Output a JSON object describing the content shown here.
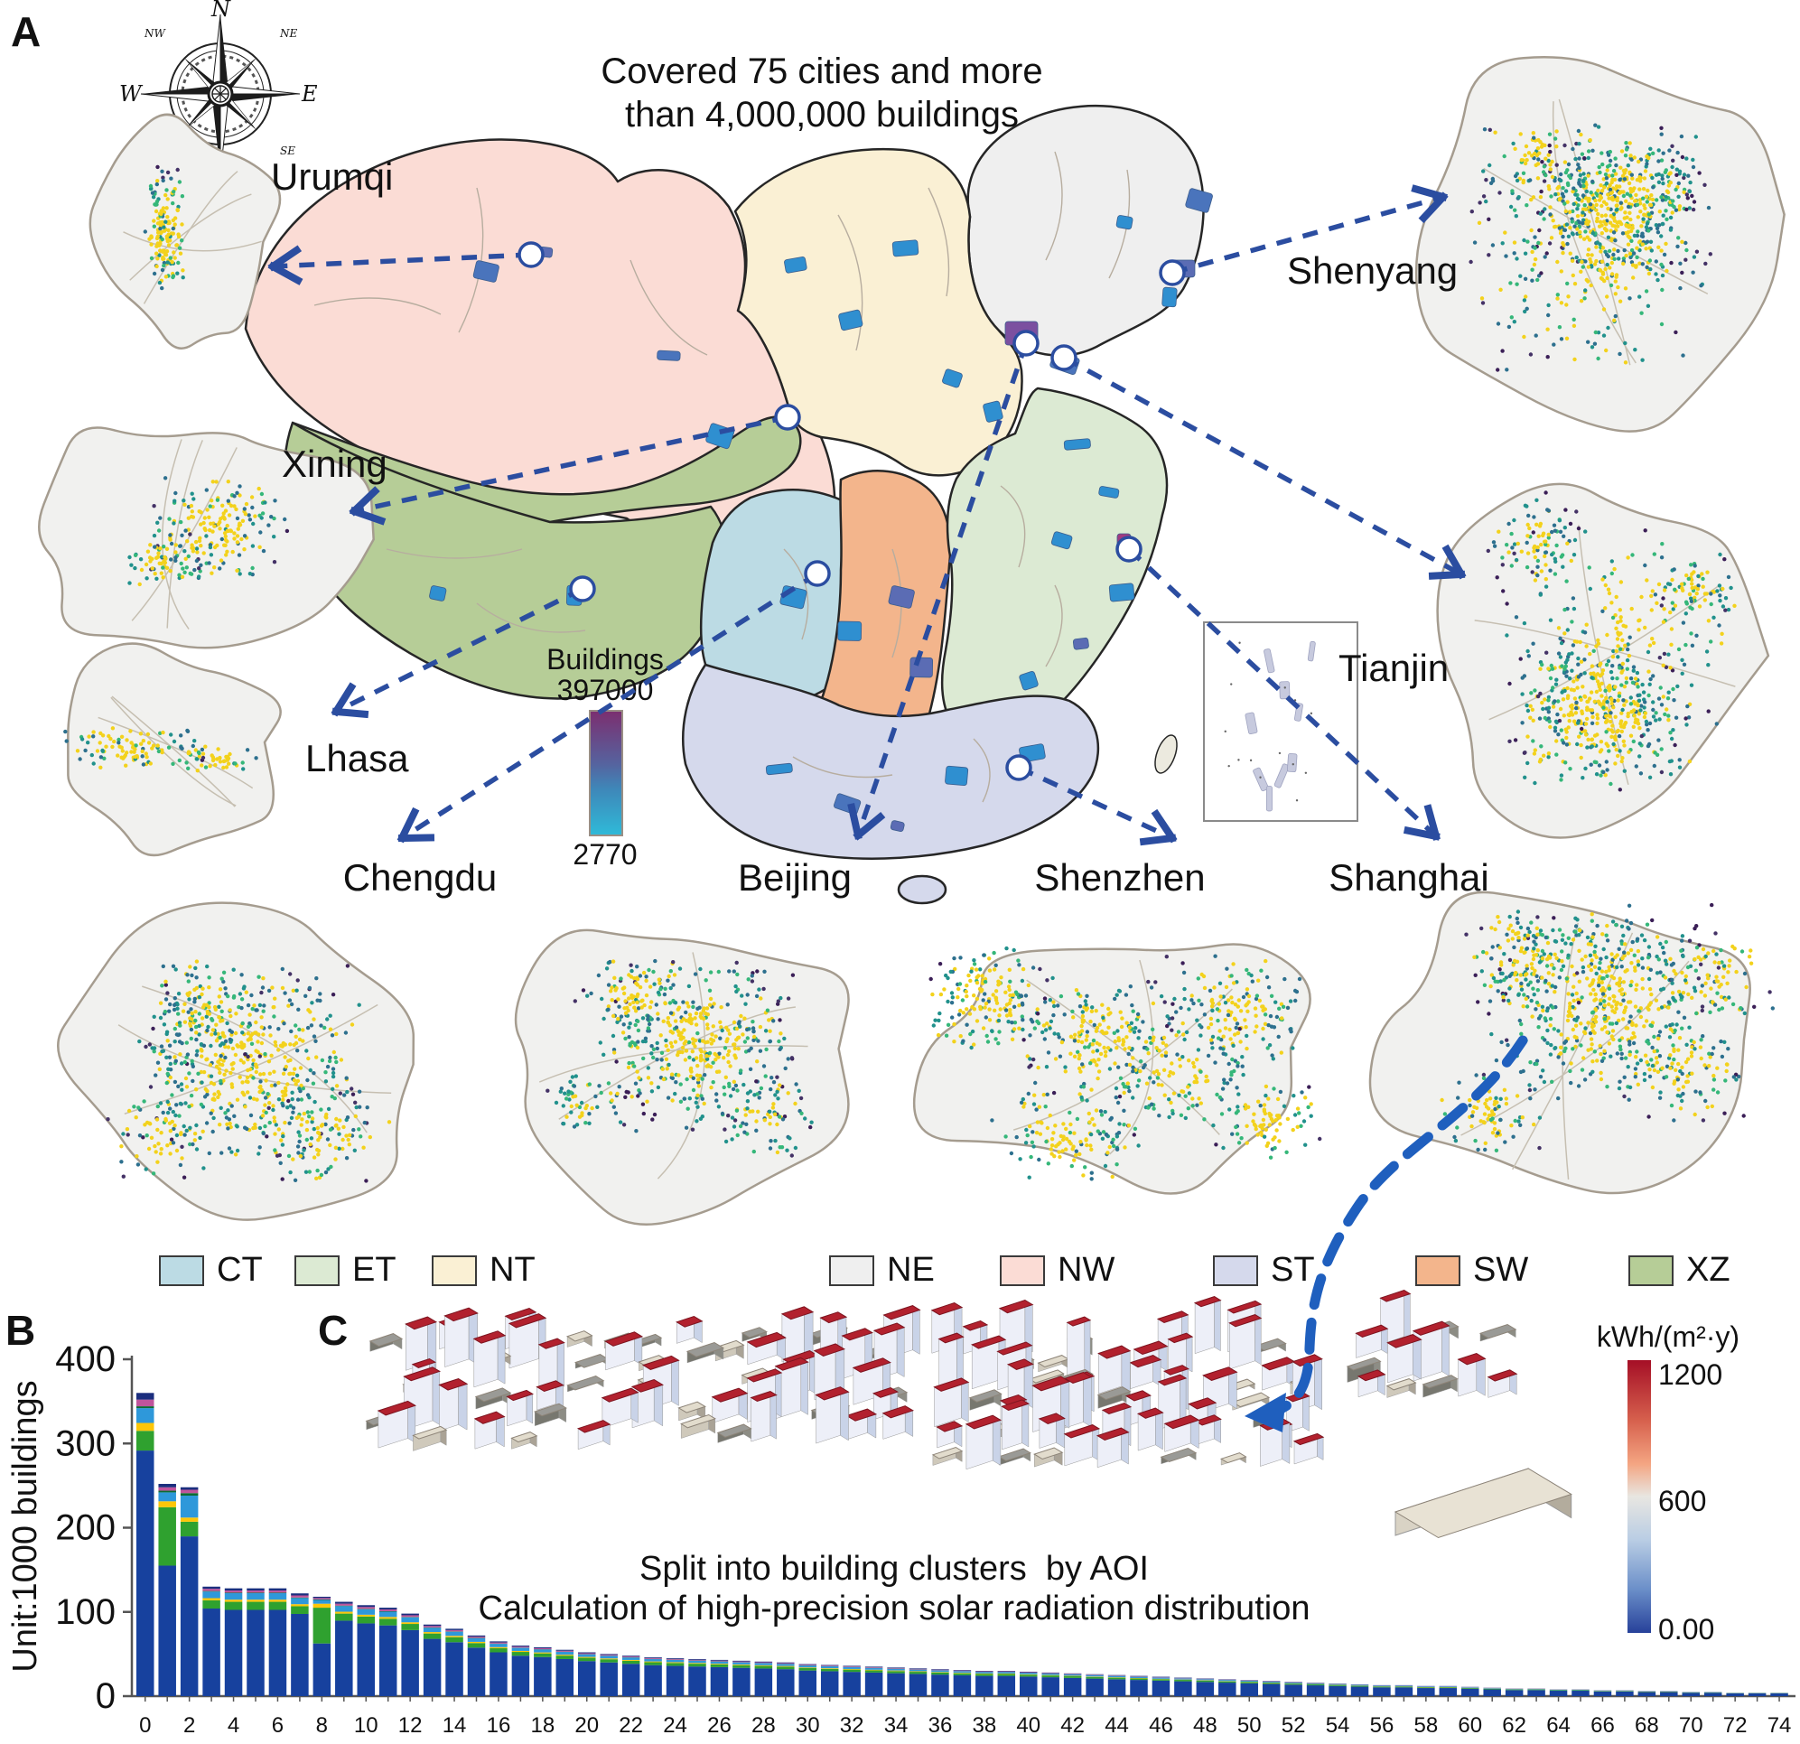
{
  "figure": {
    "panel_a_label": "A",
    "panel_b_label": "B",
    "panel_c_label": "C",
    "title_line1": "Covered 75 cities and more",
    "title_line2": "than 4,000,000 buildings"
  },
  "compass": {
    "n": "N",
    "s": "S",
    "e": "E",
    "w": "W",
    "nw": "NW",
    "ne": "NE",
    "sw": "SW",
    "se": "SE"
  },
  "map": {
    "cities": [
      {
        "name": "Urumqi"
      },
      {
        "name": "Xining"
      },
      {
        "name": "Lhasa"
      },
      {
        "name": "Chengdu"
      },
      {
        "name": "Beijing"
      },
      {
        "name": "Shenzhen"
      },
      {
        "name": "Shanghai"
      },
      {
        "name": "Shenyang"
      },
      {
        "name": "Tianjin"
      }
    ],
    "colorbar": {
      "title": "Buildings",
      "max": "397000",
      "min": "2770",
      "top_color": "#7b2f70",
      "mid_color": "#56629e",
      "bottom_color": "#2fb9d8"
    }
  },
  "legend": {
    "items": [
      {
        "code": "CT",
        "color": "#bcdbe4"
      },
      {
        "code": "ET",
        "color": "#dcead3"
      },
      {
        "code": "NT",
        "color": "#faf0d4"
      },
      {
        "code": "NE",
        "color": "#efefef"
      },
      {
        "code": "NW",
        "color": "#fbdcd5"
      },
      {
        "code": "ST",
        "color": "#d5d9ec"
      },
      {
        "code": "SW",
        "color": "#f3b58c"
      },
      {
        "code": "XZ",
        "color": "#b6cd97"
      }
    ]
  },
  "panel_c": {
    "caption_line1": "Split into building clusters  by AOI",
    "caption_line2": "Calculation of high-precision solar radiation distribution",
    "colorbar": {
      "title": "kWh/(m²·y)",
      "max": "1200",
      "mid": "600",
      "min": "0.00",
      "top_color": "#a50f26",
      "mid_color": "#e8e6e1",
      "bottom_color": "#27419a"
    }
  },
  "chart_data": {
    "type": "stacked-bar",
    "title": "",
    "xlabel": "",
    "ylabel": "Unit:1000 buildings",
    "y_ticks": [
      0,
      100,
      200,
      300,
      400
    ],
    "ylim": [
      0,
      400
    ],
    "x_range": [
      0,
      74
    ],
    "x_tick_step": 2,
    "totals": [
      360,
      252,
      248,
      130,
      128,
      128,
      128,
      122,
      118,
      112,
      108,
      105,
      98,
      85,
      80,
      72,
      65,
      60,
      58,
      55,
      52,
      50,
      48,
      46,
      45,
      44,
      43,
      42,
      41,
      40,
      38,
      37,
      36,
      35,
      34,
      33,
      32,
      31,
      30,
      30,
      29,
      28,
      27,
      26,
      25,
      24,
      23,
      22,
      21,
      20,
      19,
      18,
      17,
      16,
      15,
      14,
      13,
      13,
      12,
      12,
      11,
      10,
      9,
      9,
      8,
      8,
      7,
      7,
      6,
      6,
      5,
      5,
      4,
      4,
      4
    ],
    "segments": [
      {
        "name": "primary",
        "color": "#17419e",
        "default_fraction": 0.8
      },
      {
        "name": "green",
        "color": "#2fa12f",
        "default_fraction": 0.075
      },
      {
        "name": "yellow",
        "color": "#fdc608",
        "default_fraction": 0.02
      },
      {
        "name": "light-blue",
        "color": "#2e98da",
        "default_fraction": 0.06
      },
      {
        "name": "dark-green",
        "color": "#0d6b33",
        "default_fraction": 0.005
      },
      {
        "name": "magenta",
        "color": "#c0549c",
        "default_fraction": 0.02
      },
      {
        "name": "navy-cap",
        "color": "#1b2e7e",
        "default_fraction": 0.02
      }
    ],
    "fraction_overrides": {
      "0": [
        0.81,
        0.065,
        0.026,
        0.049,
        0.006,
        0.022,
        0.022
      ],
      "1": [
        0.615,
        0.275,
        0.028,
        0.042,
        0.008,
        0.016,
        0.016
      ],
      "2": [
        0.765,
        0.07,
        0.02,
        0.105,
        0.012,
        0.016,
        0.012
      ],
      "8": [
        0.53,
        0.36,
        0.04,
        0.038,
        0.006,
        0.013,
        0.013
      ]
    }
  }
}
